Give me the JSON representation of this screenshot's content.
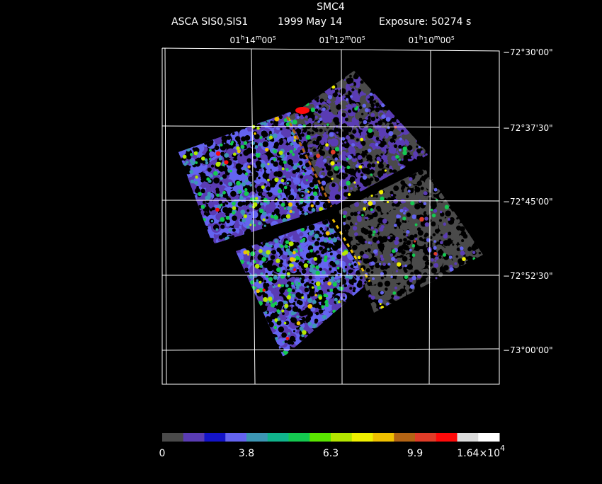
{
  "header": {
    "title": "SMC4",
    "instrument": "ASCA SIS0,SIS1",
    "date": "1999 May 14",
    "exposure": "Exposure: 50274 s"
  },
  "ra_labels": [
    [
      "01",
      "h",
      "14",
      "m",
      "00",
      "s"
    ],
    [
      "01",
      "h",
      "12",
      "m",
      "00",
      "s"
    ],
    [
      "01",
      "h",
      "10",
      "m",
      "00",
      "s"
    ]
  ],
  "dec_labels": [
    "−72°30'00\"",
    "−72°37'30\"",
    "−72°45'00\"",
    "−72°52'30\"",
    "−73°00'00\""
  ],
  "colorbar": {
    "colors": [
      "#4a4a4a",
      "#5a3cb4",
      "#1414c8",
      "#6464f0",
      "#3c96b4",
      "#10b48c",
      "#14c850",
      "#5ae600",
      "#b4e600",
      "#f0f000",
      "#f0c000",
      "#b46414",
      "#e03c28",
      "#ff0a0a",
      "#dcdcdc",
      "#ffffff"
    ],
    "labels": [
      "0",
      "3.8",
      "6.3",
      "9.9",
      {
        "mantissa": "1.64×10",
        "exponent": "4"
      }
    ]
  }
}
